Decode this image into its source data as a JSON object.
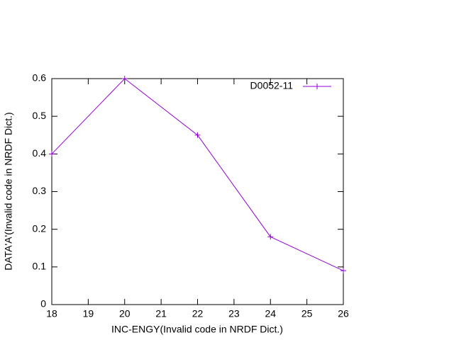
{
  "chart_data": {
    "type": "line",
    "xlabel": "INC-ENGY(Invalid code in NRDF Dict.)",
    "ylabel": "DATA'A'(Invalid code in NRDF Dict.)",
    "xlim": [
      18,
      26
    ],
    "xticks": [
      18,
      19,
      20,
      21,
      22,
      23,
      24,
      25,
      26
    ],
    "ylim": [
      0,
      0.6
    ],
    "yticks": [
      0,
      0.1,
      0.2,
      0.3,
      0.4,
      0.5,
      0.6
    ],
    "legend": "top-right",
    "series": [
      {
        "name": "D0052-11",
        "color": "#9400d3",
        "x": [
          18,
          20,
          22,
          24,
          26
        ],
        "values": [
          0.4,
          0.6,
          0.45,
          0.18,
          0.09
        ]
      }
    ]
  }
}
